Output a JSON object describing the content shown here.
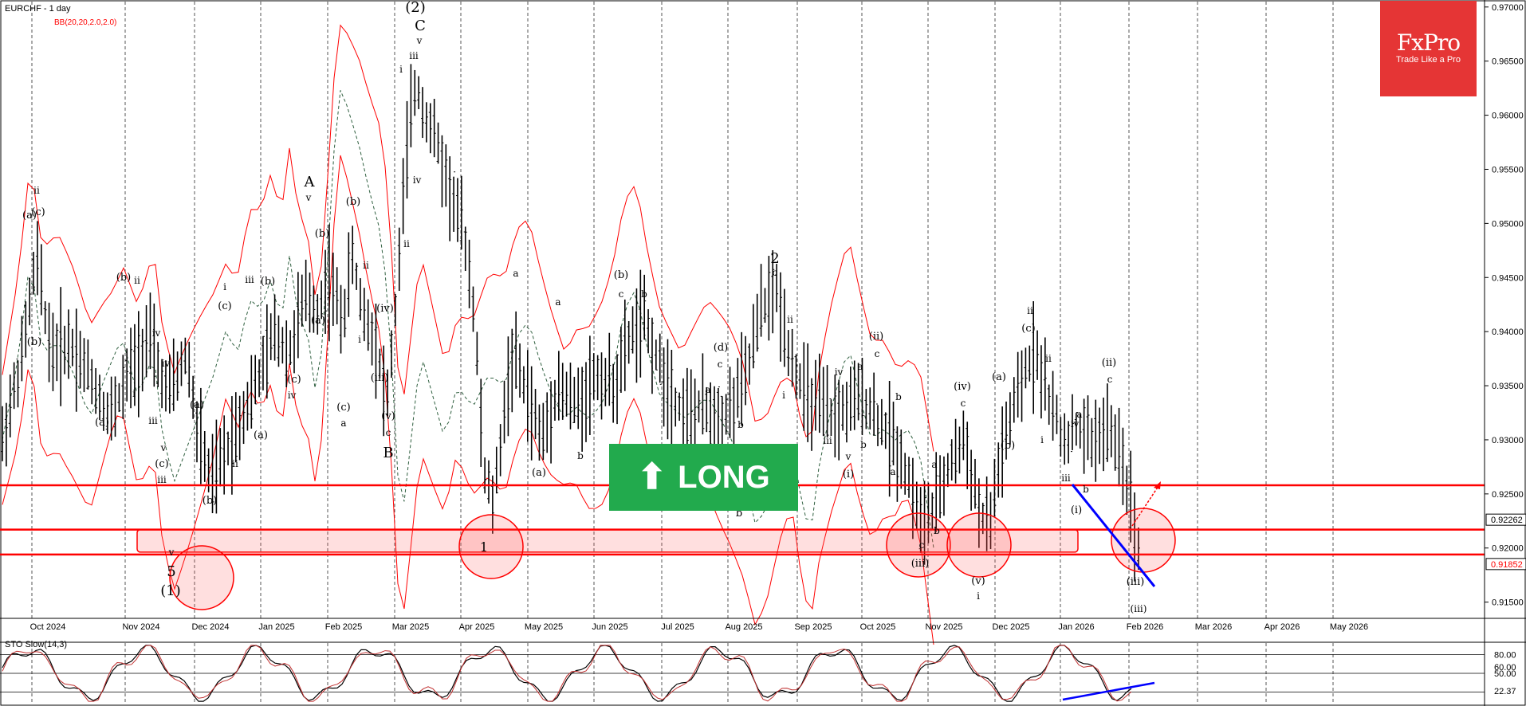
{
  "header": {
    "symbol_title": "EURCHF - 1 day",
    "indicator_label": "BB(20,20,2.0,2.0)"
  },
  "logo": {
    "brand": "FxPro",
    "tagline": "Trade Like a Pro"
  },
  "signal": {
    "label": "LONG",
    "color": "#22aa4d"
  },
  "stochastic": {
    "label": "STO Slow(14,3)",
    "levels": [
      80,
      50
    ],
    "extra_ticks": [
      "60.00"
    ],
    "current_label": "22.37"
  },
  "colors": {
    "price": "#000000",
    "bands": "#ff0000",
    "midline": "#2f5f3f",
    "levels": "#ff0000",
    "trendline": "#0000ff",
    "logo": "#e53535"
  },
  "chart_data": {
    "type": "line",
    "title": "EURCHF - 1 day",
    "x_ticks": [
      "Oct 2024",
      "Nov 2024",
      "Dec 2024",
      "Jan 2025",
      "Feb 2025",
      "Mar 2025",
      "Apr 2025",
      "May 2025",
      "Jun 2025",
      "Jul 2025",
      "Aug 2025",
      "Sep 2025",
      "Oct 2025",
      "Nov 2025",
      "Dec 2025",
      "Jan 2026",
      "Feb 2026",
      "Mar 2026",
      "Apr 2026",
      "May 2026"
    ],
    "y_ticks": [
      "0.97000",
      "0.96500",
      "0.96000",
      "0.95500",
      "0.95000",
      "0.94500",
      "0.94000",
      "0.93500",
      "0.93000",
      "0.92500",
      "0.92000",
      "0.91500"
    ],
    "ylim": [
      0.9135,
      0.9705
    ],
    "price_markers": [
      "0.92262",
      "0.91852"
    ],
    "resistance_level": 0.9258,
    "support_zone": [
      0.9194,
      0.9217
    ],
    "price_path": [
      [
        0,
        0.93
      ],
      [
        20,
        0.9375
      ],
      [
        35,
        0.947
      ],
      [
        50,
        0.938
      ],
      [
        70,
        0.939
      ],
      [
        90,
        0.936
      ],
      [
        110,
        0.932
      ],
      [
        130,
        0.936
      ],
      [
        150,
        0.9395
      ],
      [
        170,
        0.934
      ],
      [
        190,
        0.938
      ],
      [
        200,
        0.931
      ],
      [
        215,
        0.926
      ],
      [
        235,
        0.93
      ],
      [
        250,
        0.933
      ],
      [
        265,
        0.936
      ],
      [
        280,
        0.94
      ],
      [
        295,
        0.938
      ],
      [
        310,
        0.943
      ],
      [
        325,
        0.942
      ],
      [
        335,
        0.945
      ],
      [
        350,
        0.941
      ],
      [
        360,
        0.947
      ],
      [
        370,
        0.942
      ],
      [
        385,
        0.939
      ],
      [
        395,
        0.933
      ],
      [
        405,
        0.943
      ],
      [
        415,
        0.956
      ],
      [
        425,
        0.963
      ],
      [
        435,
        0.96
      ],
      [
        445,
        0.958
      ],
      [
        460,
        0.953
      ],
      [
        475,
        0.949
      ],
      [
        485,
        0.942
      ],
      [
        495,
        0.927
      ],
      [
        505,
        0.924
      ],
      [
        515,
        0.932
      ],
      [
        525,
        0.938
      ],
      [
        540,
        0.934
      ],
      [
        555,
        0.93
      ],
      [
        570,
        0.935
      ],
      [
        590,
        0.933
      ],
      [
        610,
        0.936
      ],
      [
        630,
        0.935
      ],
      [
        645,
        0.9395
      ],
      [
        660,
        0.941
      ],
      [
        675,
        0.937
      ],
      [
        690,
        0.934
      ],
      [
        705,
        0.932
      ],
      [
        720,
        0.933
      ],
      [
        735,
        0.932
      ],
      [
        750,
        0.933
      ],
      [
        765,
        0.936
      ],
      [
        780,
        0.942
      ],
      [
        795,
        0.944
      ],
      [
        810,
        0.938
      ],
      [
        825,
        0.934
      ],
      [
        840,
        0.933
      ],
      [
        855,
        0.932
      ],
      [
        870,
        0.933
      ],
      [
        885,
        0.934
      ],
      [
        900,
        0.932
      ],
      [
        915,
        0.93
      ],
      [
        930,
        0.927
      ],
      [
        945,
        0.922
      ],
      [
        960,
        0.924
      ],
      [
        975,
        0.928
      ],
      [
        990,
        0.93
      ],
      [
        1005,
        0.923
      ],
      [
        1015,
        0.922
      ],
      [
        1025,
        0.928
      ],
      [
        1040,
        0.933
      ],
      [
        1055,
        0.937
      ],
      [
        1062,
        0.9385
      ],
      [
        1075,
        0.934
      ],
      [
        1090,
        0.93
      ],
      [
        1105,
        0.931
      ],
      [
        1120,
        0.93
      ],
      [
        1135,
        0.931
      ],
      [
        1150,
        0.929
      ],
      [
        1160,
        0.924
      ],
      [
        1168,
        0.92
      ]
    ]
  }
}
